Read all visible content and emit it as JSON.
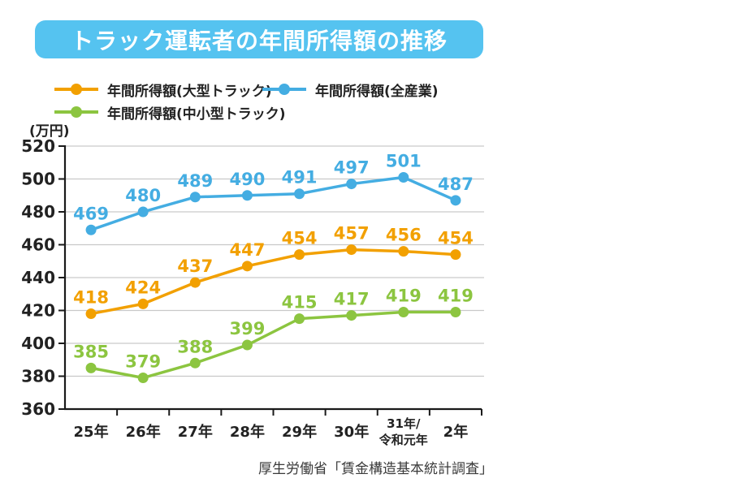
{
  "page": {
    "title": "トラック運転者の年間所得額の推移",
    "unit_label": "(万円)",
    "source": "厚生労働省「賃金構造基本統計調査」",
    "colors": {
      "title_bar_bg": "#55C3F0",
      "title_text": "#FFFFFF",
      "grid": "#C9C9C9",
      "axis": "#1A1A1A",
      "tick_text": "#222222",
      "source_text": "#3A3A3A"
    }
  },
  "legend": {
    "items": [
      {
        "id": "large-truck",
        "label": "年間所得額(大型トラック)",
        "color": "#F2A000"
      },
      {
        "id": "all-industries",
        "label": "年間所得額(全産業)",
        "color": "#44ADE2"
      },
      {
        "id": "small-medium-truck",
        "label": "年間所得額(中小型トラック)",
        "color": "#8CC540"
      }
    ]
  },
  "chart_data": {
    "type": "line",
    "title": "トラック運転者の年間所得額の推移",
    "unit": "万円",
    "categories": [
      "25年",
      "26年",
      "27年",
      "28年",
      "29年",
      "30年",
      "31年/令和元年",
      "2年"
    ],
    "series": [
      {
        "id": "large-truck",
        "name": "年間所得額(大型トラック)",
        "color": "#F2A000",
        "values": [
          418,
          424,
          437,
          447,
          454,
          457,
          456,
          454
        ]
      },
      {
        "id": "all-industries",
        "name": "年間所得額(全産業)",
        "color": "#44ADE2",
        "values": [
          469,
          480,
          489,
          490,
          491,
          497,
          501,
          487
        ]
      },
      {
        "id": "small-medium-truck",
        "name": "年間所得額(中小型トラック)",
        "color": "#8CC540",
        "values": [
          385,
          379,
          388,
          399,
          415,
          417,
          419,
          419
        ]
      }
    ],
    "ylim": [
      360,
      520
    ],
    "y_ticks": [
      360,
      380,
      400,
      420,
      440,
      460,
      480,
      500,
      520
    ],
    "grid": "horizontal",
    "legend_position": "top",
    "source": "厚生労働省「賃金構造基本統計調査」"
  }
}
